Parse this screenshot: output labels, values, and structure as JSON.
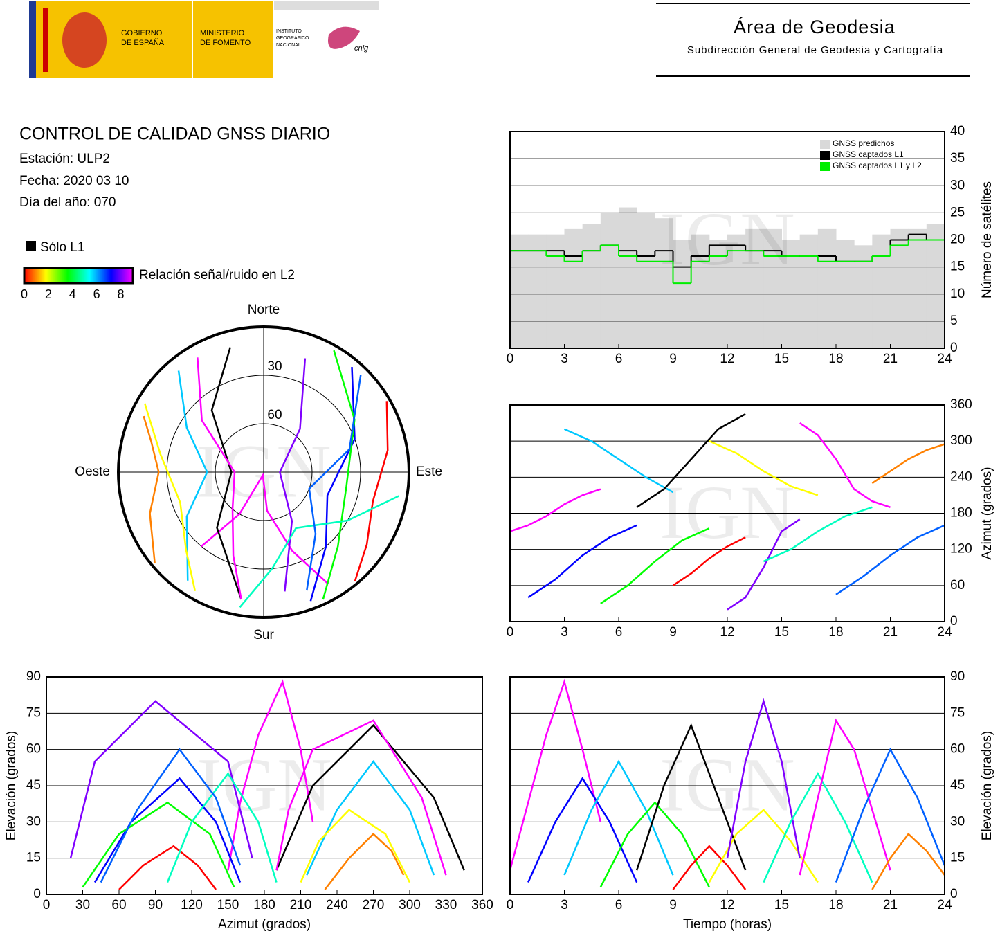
{
  "header": {
    "government": [
      "GOBIERNO",
      "DE ESPAÑA"
    ],
    "ministry": [
      "MINISTERIO",
      "DE FOMENTO"
    ],
    "institute": [
      "INSTITUTO",
      "GEOGRÁFICO",
      "NACIONAL"
    ],
    "cnig": "cnig",
    "area": "Área de Geodesia",
    "subdirection": "Subdirección General de Geodesia y Cartografía"
  },
  "report": {
    "title": "CONTROL DE CALIDAD GNSS DIARIO",
    "station": "Estación: ULP2",
    "date": "Fecha: 2020 03 10",
    "day_of_year": "Día del año: 070"
  },
  "watermark": "IGN",
  "chart_data": [
    {
      "type": "step",
      "ylabel": "Número de satélites",
      "x": [
        0,
        1,
        2,
        3,
        4,
        5,
        6,
        7,
        8,
        9,
        10,
        11,
        12,
        13,
        14,
        15,
        16,
        17,
        18,
        19,
        20,
        21,
        22,
        23
      ],
      "series": [
        {
          "name": "GNSS predichos",
          "color": "#d9d9d9",
          "area": true,
          "values": [
            21,
            21,
            21,
            22,
            23,
            25,
            26,
            25,
            24,
            20,
            21,
            20,
            21,
            22,
            22,
            20,
            21,
            22,
            20,
            19,
            21,
            22,
            22,
            23
          ]
        },
        {
          "name": "GNSS captados L1",
          "color": "#000000",
          "area": false,
          "values": [
            18,
            18,
            18,
            17,
            18,
            19,
            18,
            17,
            18,
            15,
            17,
            19,
            19,
            18,
            18,
            17,
            17,
            17,
            16,
            16,
            17,
            20,
            21,
            20
          ]
        },
        {
          "name": "GNSS captados L1 y L2",
          "color": "#00ee00",
          "area": false,
          "values": [
            18,
            18,
            17,
            16,
            18,
            19,
            17,
            16,
            16,
            12,
            16,
            17,
            18,
            18,
            17,
            17,
            17,
            16,
            16,
            16,
            17,
            19,
            20,
            20
          ]
        }
      ],
      "xlim": [
        0,
        24
      ],
      "xticks": [
        0,
        3,
        6,
        9,
        12,
        15,
        18,
        21,
        24
      ],
      "ylim": [
        0,
        40
      ],
      "yticks": [
        0,
        5,
        10,
        15,
        20,
        25,
        30,
        35,
        40
      ],
      "grid": true,
      "legend": "top-right"
    },
    {
      "type": "tracks",
      "l1_only_label": "Sólo L1",
      "l1_only_color": "#000000",
      "colorbar_label": "Relación señal/ruido en L2",
      "colorbar": {
        "colors": [
          "#ff0000",
          "#ffff00",
          "#00ff00",
          "#00ffff",
          "#0000ff",
          "#ff00ff"
        ],
        "lim": [
          0,
          9
        ],
        "ticks": [
          0,
          2,
          4,
          6,
          8
        ]
      },
      "sky": {
        "north": "Norte",
        "south": "Sur",
        "east": "Este",
        "west": "Oeste",
        "rings": [
          30,
          60
        ]
      },
      "panels": [
        {
          "x": "time",
          "y": "azimuth",
          "ylabel": "Azimut (grados)",
          "xlim": [
            0,
            24
          ],
          "xticks": [
            0,
            3,
            6,
            9,
            12,
            15,
            18,
            21,
            24
          ],
          "ylim": [
            0,
            360
          ],
          "yticks": [
            0,
            60,
            120,
            180,
            240,
            300,
            360
          ]
        },
        {
          "x": "azimuth",
          "y": "elevation",
          "xlabel": "Azimut (grados)",
          "ylabel": "Elevación (grados)",
          "xlim": [
            0,
            360
          ],
          "xticks": [
            0,
            30,
            60,
            90,
            120,
            150,
            180,
            210,
            240,
            270,
            300,
            330,
            360
          ],
          "ylim": [
            0,
            90
          ],
          "yticks": [
            0,
            15,
            30,
            45,
            60,
            75,
            90
          ]
        },
        {
          "x": "time",
          "y": "elevation",
          "xlabel": "Tiempo (horas)",
          "ylabel": "Elevación (grados)",
          "xlim": [
            0,
            24
          ],
          "xticks": [
            0,
            3,
            6,
            9,
            12,
            15,
            18,
            21,
            24
          ],
          "ylim": [
            0,
            90
          ],
          "yticks": [
            0,
            15,
            30,
            45,
            60,
            75,
            90
          ]
        }
      ],
      "tracks": [
        {
          "color": "#ff00ff",
          "time": [
            0,
            1,
            2,
            3,
            4,
            5
          ],
          "azimuth": [
            150,
            160,
            175,
            195,
            210,
            220
          ],
          "elevation": [
            10,
            38,
            66,
            88,
            60,
            30
          ]
        },
        {
          "color": "#0000ff",
          "time": [
            1,
            2.5,
            4,
            5.5,
            7
          ],
          "azimuth": [
            40,
            70,
            110,
            140,
            160
          ],
          "elevation": [
            5,
            30,
            48,
            30,
            5
          ]
        },
        {
          "color": "#00c8ff",
          "time": [
            3,
            4.5,
            6,
            7.5,
            9
          ],
          "azimuth": [
            320,
            300,
            270,
            240,
            215
          ],
          "elevation": [
            8,
            35,
            55,
            35,
            8
          ]
        },
        {
          "color": "#00ff00",
          "time": [
            5,
            6.5,
            8,
            9.5,
            11
          ],
          "azimuth": [
            30,
            60,
            100,
            135,
            155
          ],
          "elevation": [
            3,
            25,
            38,
            25,
            3
          ]
        },
        {
          "color": "#000000",
          "time": [
            7,
            8.5,
            10,
            11.5,
            13
          ],
          "azimuth": [
            190,
            220,
            270,
            320,
            345
          ],
          "elevation": [
            10,
            45,
            70,
            40,
            10
          ]
        },
        {
          "color": "#ff0000",
          "time": [
            9,
            10,
            11,
            12,
            13
          ],
          "azimuth": [
            60,
            80,
            105,
            125,
            140
          ],
          "elevation": [
            2,
            12,
            20,
            12,
            2
          ]
        },
        {
          "color": "#ffff00",
          "time": [
            11,
            12.5,
            14,
            15.5,
            17
          ],
          "azimuth": [
            300,
            280,
            250,
            225,
            210
          ],
          "elevation": [
            5,
            25,
            35,
            22,
            5
          ]
        },
        {
          "color": "#8000ff",
          "time": [
            12,
            13,
            14,
            15,
            16
          ],
          "azimuth": [
            20,
            40,
            90,
            150,
            170
          ],
          "elevation": [
            15,
            55,
            80,
            55,
            15
          ]
        },
        {
          "color": "#00ffc0",
          "time": [
            14,
            15.5,
            17,
            18.5,
            20
          ],
          "azimuth": [
            100,
            120,
            150,
            175,
            190
          ],
          "elevation": [
            5,
            30,
            50,
            30,
            5
          ]
        },
        {
          "color": "#ff00ff",
          "time": [
            16,
            17,
            18,
            19,
            20,
            21
          ],
          "azimuth": [
            330,
            310,
            270,
            220,
            200,
            190
          ],
          "elevation": [
            8,
            40,
            72,
            60,
            35,
            10
          ]
        },
        {
          "color": "#0060ff",
          "time": [
            18,
            19.5,
            21,
            22.5,
            24
          ],
          "azimuth": [
            45,
            75,
            110,
            140,
            160
          ],
          "elevation": [
            5,
            35,
            60,
            40,
            12
          ]
        },
        {
          "color": "#ff8000",
          "time": [
            20,
            21,
            22,
            23,
            24
          ],
          "azimuth": [
            230,
            250,
            270,
            285,
            295
          ],
          "elevation": [
            2,
            15,
            25,
            18,
            8
          ]
        }
      ]
    }
  ]
}
